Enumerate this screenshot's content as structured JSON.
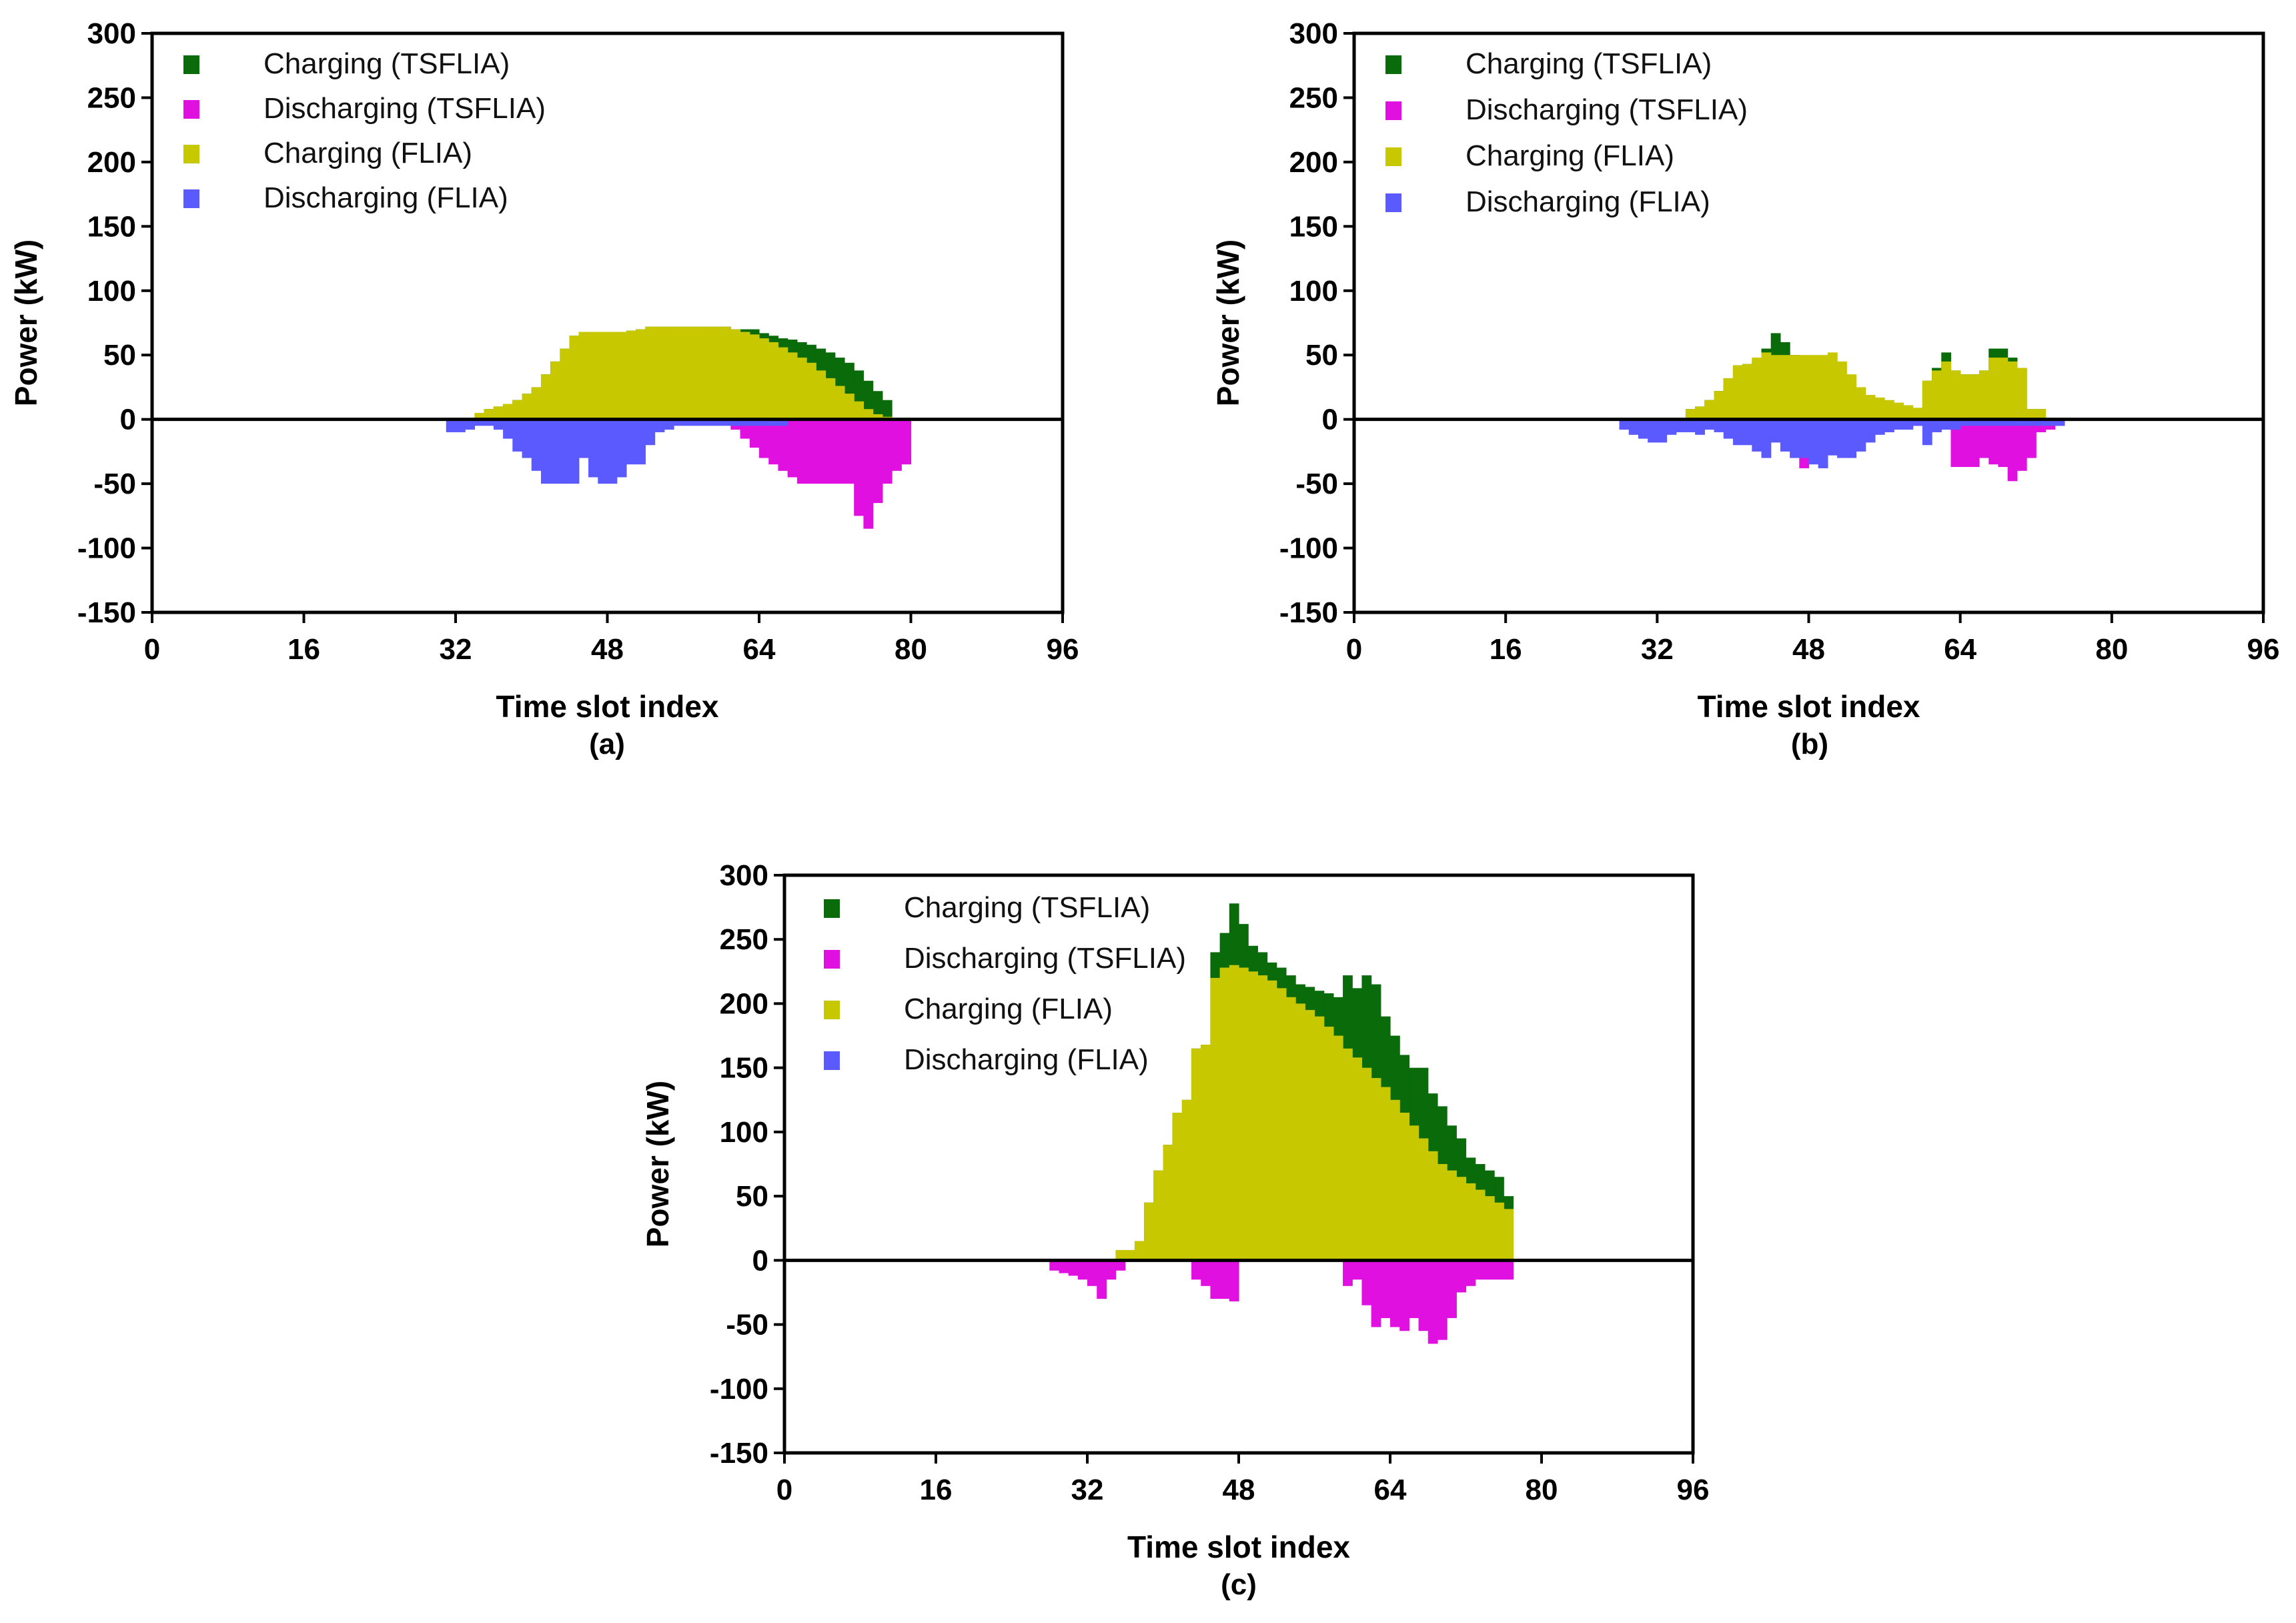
{
  "chart_data": [
    {
      "panel": "(a)",
      "type": "bar",
      "xlabel": "Time slot index",
      "ylabel": "Power (kW)",
      "xlim": [
        0,
        96
      ],
      "ylim": [
        -150,
        300
      ],
      "xticks": [
        0,
        16,
        32,
        48,
        64,
        80,
        96
      ],
      "yticks": [
        -150,
        -100,
        -50,
        0,
        50,
        100,
        150,
        200,
        250,
        300
      ],
      "legend": [
        "Charging (TSFLIA)",
        "Discharging (TSFLIA)",
        "Charging (FLIA)",
        "Discharging (FLIA)"
      ],
      "colors": {
        "charging_tsflia": "#0a6b0a",
        "discharging_tsflia": "#e010e0",
        "charging_flia": "#c8c800",
        "discharging_flia": "#5a5aff"
      },
      "series": [
        {
          "name": "Charging (TSFLIA)",
          "start": 33,
          "values": [
            0,
            5,
            8,
            10,
            12,
            15,
            20,
            25,
            35,
            45,
            55,
            65,
            68,
            68,
            68,
            68,
            68,
            69,
            70,
            72,
            72,
            72,
            72,
            72,
            72,
            72,
            72,
            72,
            70,
            70,
            70,
            67,
            65,
            63,
            62,
            60,
            58,
            55,
            52,
            48,
            44,
            38,
            30,
            22,
            15
          ]
        },
        {
          "name": "Discharging (TSFLIA)",
          "start": 31,
          "values": [
            0,
            0,
            0,
            0,
            0,
            0,
            0,
            0,
            0,
            0,
            0,
            0,
            0,
            0,
            0,
            0,
            0,
            0,
            0,
            0,
            0,
            0,
            0,
            0,
            0,
            0,
            0,
            0,
            0,
            0,
            -8,
            -15,
            -22,
            -30,
            -35,
            -40,
            -45,
            -50,
            -50,
            -50,
            -50,
            -50,
            -50,
            -75,
            -85,
            -65,
            -50,
            -40,
            -35
          ]
        },
        {
          "name": "Charging (FLIA)",
          "start": 33,
          "values": [
            0,
            5,
            8,
            10,
            12,
            15,
            20,
            25,
            35,
            45,
            55,
            65,
            68,
            68,
            68,
            68,
            68,
            69,
            70,
            72,
            72,
            72,
            72,
            72,
            72,
            72,
            72,
            72,
            70,
            68,
            66,
            63,
            60,
            56,
            52,
            48,
            44,
            38,
            32,
            26,
            20,
            14,
            8,
            4,
            2
          ]
        },
        {
          "name": "Discharging (FLIA)",
          "start": 31,
          "values": [
            -10,
            -10,
            -8,
            -5,
            -5,
            -8,
            -15,
            -25,
            -30,
            -40,
            -50,
            -50,
            -50,
            -50,
            -30,
            -45,
            -50,
            -50,
            -45,
            -35,
            -35,
            -20,
            -10,
            -8,
            -5,
            -5,
            -5,
            -5,
            -5,
            -5,
            -5,
            -5,
            -5,
            -5,
            -5,
            -5,
            0
          ]
        }
      ]
    },
    {
      "panel": "(b)",
      "type": "bar",
      "xlabel": "Time slot index",
      "ylabel": "Power (kW)",
      "xlim": [
        0,
        96
      ],
      "ylim": [
        -150,
        300
      ],
      "xticks": [
        0,
        16,
        32,
        48,
        64,
        80,
        96
      ],
      "yticks": [
        -150,
        -100,
        -50,
        0,
        50,
        100,
        150,
        200,
        250,
        300
      ],
      "legend": [
        "Charging (TSFLIA)",
        "Discharging (TSFLIA)",
        "Charging (FLIA)",
        "Discharging (FLIA)"
      ],
      "colors": {
        "charging_tsflia": "#0a6b0a",
        "discharging_tsflia": "#e010e0",
        "charging_flia": "#c8c800",
        "discharging_flia": "#5a5aff"
      },
      "series": [
        {
          "name": "Charging (TSFLIA)",
          "start": 35,
          "values": [
            8,
            10,
            15,
            22,
            32,
            42,
            43,
            45,
            55,
            67,
            60,
            50,
            40,
            30,
            27,
            25,
            23,
            21,
            19,
            17,
            15,
            13,
            11,
            9,
            8,
            30,
            40,
            52,
            38,
            35,
            35,
            38,
            55,
            55,
            48,
            40,
            8,
            8
          ]
        },
        {
          "name": "Discharging (TSFLIA)",
          "start": 42,
          "values": [
            0,
            0,
            0,
            -10,
            -15,
            -38,
            -28,
            -32,
            -25,
            -15,
            -10,
            -8,
            -8,
            -5,
            -5,
            -5,
            -5,
            -5,
            -5,
            -5,
            -5,
            -37,
            -37,
            -37,
            -30,
            -35,
            -37,
            -48,
            -40,
            -30,
            -10,
            -8,
            -5
          ]
        },
        {
          "name": "Charging (FLIA)",
          "start": 35,
          "values": [
            8,
            10,
            15,
            22,
            32,
            42,
            43,
            48,
            52,
            50,
            50,
            50,
            50,
            50,
            50,
            52,
            45,
            35,
            25,
            19,
            17,
            15,
            13,
            11,
            9,
            30,
            38,
            45,
            38,
            35,
            35,
            38,
            48,
            48,
            45,
            40,
            8,
            8
          ]
        },
        {
          "name": "Discharging (FLIA)",
          "start": 28,
          "values": [
            -8,
            -12,
            -15,
            -18,
            -18,
            -12,
            -10,
            -10,
            -12,
            -8,
            -10,
            -15,
            -20,
            -20,
            -25,
            -30,
            -18,
            -25,
            -30,
            -30,
            -35,
            -38,
            -28,
            -30,
            -30,
            -25,
            -18,
            -12,
            -10,
            -8,
            -8,
            -5,
            -20,
            -10,
            -8,
            -8,
            -5,
            -5,
            -5,
            -5,
            -5,
            -5,
            -5,
            -5,
            -5,
            -5,
            -5
          ]
        }
      ]
    },
    {
      "panel": "(c)",
      "type": "bar",
      "xlabel": "Time slot index",
      "ylabel": "Power (kW)",
      "xlim": [
        0,
        96
      ],
      "ylim": [
        -150,
        300
      ],
      "xticks": [
        0,
        16,
        32,
        48,
        64,
        80,
        96
      ],
      "yticks": [
        -150,
        -100,
        -50,
        0,
        50,
        100,
        150,
        200,
        250,
        300
      ],
      "legend": [
        "Charging (TSFLIA)",
        "Discharging (TSFLIA)",
        "Charging (FLIA)",
        "Discharging (FLIA)"
      ],
      "colors": {
        "charging_tsflia": "#0a6b0a",
        "discharging_tsflia": "#e010e0",
        "charging_flia": "#c8c800",
        "discharging_flia": "#5a5aff"
      },
      "series": [
        {
          "name": "Charging (TSFLIA)",
          "start": 35,
          "values": [
            8,
            8,
            15,
            45,
            70,
            90,
            115,
            125,
            165,
            168,
            240,
            255,
            278,
            262,
            245,
            240,
            232,
            228,
            222,
            215,
            213,
            210,
            208,
            205,
            222,
            212,
            222,
            215,
            190,
            175,
            160,
            150,
            150,
            130,
            120,
            105,
            95,
            80,
            75,
            70,
            65,
            50
          ]
        },
        {
          "name": "Discharging (TSFLIA)",
          "start": 28,
          "values": [
            -8,
            -10,
            -12,
            -15,
            -20,
            -30,
            -15,
            -8,
            0,
            0,
            0,
            0,
            0,
            0,
            0,
            -15,
            -20,
            -30,
            -30,
            -32,
            0,
            0,
            0,
            0,
            0,
            0,
            0,
            0,
            0,
            0,
            0,
            -20,
            -15,
            -35,
            -52,
            -45,
            -52,
            -55,
            -45,
            -55,
            -65,
            -62,
            -45,
            -25,
            -20,
            -15,
            -15,
            -15,
            -15
          ]
        },
        {
          "name": "Charging (FLIA)",
          "start": 35,
          "values": [
            8,
            8,
            15,
            45,
            70,
            90,
            115,
            125,
            165,
            168,
            220,
            228,
            230,
            228,
            225,
            222,
            218,
            212,
            205,
            200,
            195,
            190,
            182,
            175,
            165,
            158,
            150,
            142,
            135,
            125,
            115,
            105,
            95,
            85,
            75,
            70,
            65,
            60,
            55,
            50,
            45,
            40
          ]
        },
        {
          "name": "Discharging (FLIA)",
          "start": 28,
          "values": []
        }
      ]
    }
  ]
}
